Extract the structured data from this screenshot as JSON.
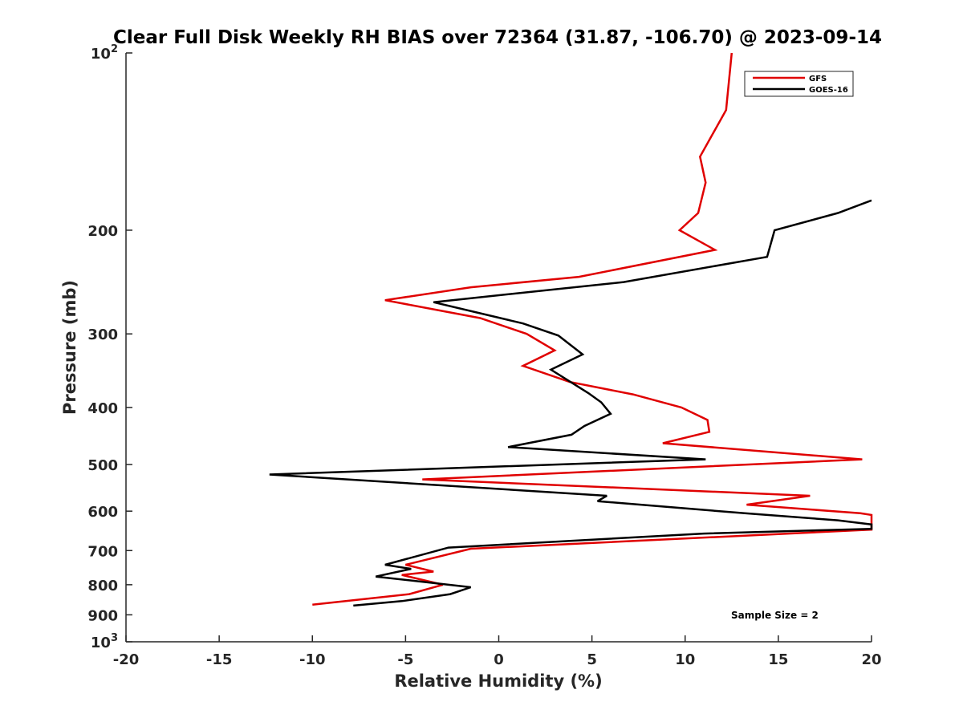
{
  "chart_data": {
    "type": "line",
    "title": "Clear Full Disk Weekly RH BIAS over 72364 (31.87, -106.70) @ 2023-09-14",
    "xlabel": "Relative Humidity (%)",
    "ylabel": "Pressure (mb)",
    "xlim": [
      -20,
      20
    ],
    "ylim": [
      100,
      1000
    ],
    "y_scale": "log",
    "y_reversed": true,
    "grid": false,
    "x_ticks": [
      -20,
      -15,
      -10,
      -5,
      0,
      5,
      10,
      15,
      20
    ],
    "x_tick_labels": [
      "-20",
      "-15",
      "-10",
      "-5",
      "0",
      "5",
      "10",
      "15",
      "20"
    ],
    "y_ticks": [
      {
        "value": 100,
        "base": "10",
        "exp": "2"
      },
      {
        "value": 200,
        "label": "200"
      },
      {
        "value": 300,
        "label": "300"
      },
      {
        "value": 400,
        "label": "400"
      },
      {
        "value": 500,
        "label": "500"
      },
      {
        "value": 600,
        "label": "600"
      },
      {
        "value": 700,
        "label": "700"
      },
      {
        "value": 800,
        "label": "800"
      },
      {
        "value": 900,
        "label": "900"
      },
      {
        "value": 1000,
        "base": "10",
        "exp": "3"
      }
    ],
    "legend_position": "top-right",
    "annotation": "Sample Size = 2",
    "series": [
      {
        "name": "GFS",
        "color": "#e00000",
        "points": [
          [
            12.5,
            100
          ],
          [
            12.2,
            125
          ],
          [
            10.8,
            150
          ],
          [
            11.1,
            166
          ],
          [
            10.7,
            187
          ],
          [
            9.7,
            200
          ],
          [
            11.6,
            216
          ],
          [
            4.3,
            240
          ],
          [
            -1.5,
            250
          ],
          [
            -6.1,
            263
          ],
          [
            -1.0,
            282
          ],
          [
            1.5,
            300
          ],
          [
            3.0,
            320
          ],
          [
            1.3,
            340
          ],
          [
            3.8,
            362
          ],
          [
            7.2,
            380
          ],
          [
            9.8,
            400
          ],
          [
            11.2,
            420
          ],
          [
            11.3,
            440
          ],
          [
            8.8,
            460
          ],
          [
            19.5,
            490
          ],
          [
            -4.1,
            530
          ],
          [
            16.7,
            565
          ],
          [
            13.3,
            585
          ],
          [
            19.4,
            605
          ],
          [
            20.0,
            609
          ],
          [
            20.0,
            645
          ],
          [
            -1.5,
            695
          ],
          [
            -5.0,
            740
          ],
          [
            -3.5,
            760
          ],
          [
            -5.2,
            770
          ],
          [
            -3.0,
            800
          ],
          [
            -4.8,
            830
          ],
          [
            -10.0,
            865
          ]
        ]
      },
      {
        "name": "GOES-16",
        "color": "#000000",
        "points": [
          [
            20.0,
            178
          ],
          [
            18.2,
            187
          ],
          [
            14.8,
            200
          ],
          [
            14.4,
            222
          ],
          [
            6.7,
            245
          ],
          [
            -3.5,
            265
          ],
          [
            1.3,
            288
          ],
          [
            3.2,
            302
          ],
          [
            4.5,
            325
          ],
          [
            2.8,
            345
          ],
          [
            4.8,
            378
          ],
          [
            5.5,
            392
          ],
          [
            6.0,
            410
          ],
          [
            4.6,
            430
          ],
          [
            3.9,
            445
          ],
          [
            0.5,
            467
          ],
          [
            11.1,
            490
          ],
          [
            -12.3,
            520
          ],
          [
            5.8,
            565
          ],
          [
            5.3,
            577
          ],
          [
            13.2,
            605
          ],
          [
            18.2,
            622
          ],
          [
            20.0,
            632
          ],
          [
            20.0,
            643
          ],
          [
            11.0,
            655
          ],
          [
            -2.7,
            692
          ],
          [
            -6.1,
            740
          ],
          [
            -4.7,
            752
          ],
          [
            -6.6,
            775
          ],
          [
            -1.5,
            808
          ],
          [
            -2.6,
            830
          ],
          [
            -5.2,
            853
          ],
          [
            -7.8,
            868
          ]
        ]
      }
    ]
  }
}
